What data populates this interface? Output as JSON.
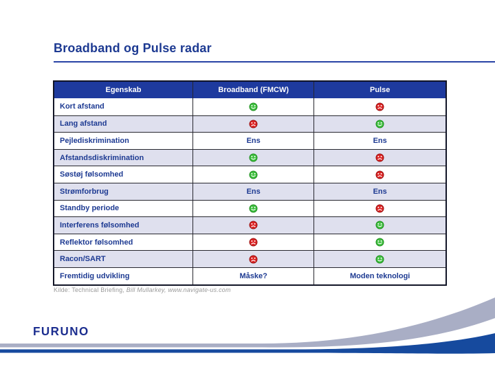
{
  "title": "Broadband og Pulse radar",
  "table": {
    "headers": [
      "Egenskab",
      "Broadband (FMCW)",
      "Pulse"
    ],
    "rows": [
      {
        "label": "Kort afstand",
        "cells": [
          {
            "icon": "happy"
          },
          {
            "icon": "sad"
          }
        ]
      },
      {
        "label": "Lang afstand",
        "cells": [
          {
            "icon": "sad"
          },
          {
            "icon": "happy"
          }
        ]
      },
      {
        "label": "Pejlediskrimination",
        "cells": [
          {
            "text": "Ens"
          },
          {
            "text": "Ens"
          }
        ]
      },
      {
        "label": "Afstandsdiskrimination",
        "cells": [
          {
            "icon": "happy"
          },
          {
            "icon": "sad"
          }
        ]
      },
      {
        "label": "Søstøj følsomhed",
        "cells": [
          {
            "icon": "happy"
          },
          {
            "icon": "sad"
          }
        ]
      },
      {
        "label": "Strømforbrug",
        "cells": [
          {
            "text": "Ens"
          },
          {
            "text": "Ens"
          }
        ]
      },
      {
        "label": "Standby periode",
        "cells": [
          {
            "icon": "happy"
          },
          {
            "icon": "sad"
          }
        ]
      },
      {
        "label": "Interferens følsomhed",
        "cells": [
          {
            "icon": "sad"
          },
          {
            "icon": "happy"
          }
        ]
      },
      {
        "label": "Reflektor følsomhed",
        "cells": [
          {
            "icon": "sad"
          },
          {
            "icon": "happy"
          }
        ]
      },
      {
        "label": "Racon/SART",
        "cells": [
          {
            "icon": "sad"
          },
          {
            "icon": "happy"
          }
        ]
      },
      {
        "label": "Fremtidig udvikling",
        "cells": [
          {
            "text": "Måske?"
          },
          {
            "text": "Moden teknologi"
          }
        ]
      }
    ]
  },
  "source": {
    "prefix": "Kilde: Technical Briefing, ",
    "italic": "Bill Mullarkey, www.navigate-us.com"
  },
  "logo_text": "FURUNO",
  "colors": {
    "title_navy": "#1d3a92",
    "header_bg": "#1e3a9e",
    "row_alt": "#dfe0ee",
    "happy_fill": "#41c141",
    "happy_stroke": "#1f8f1f",
    "sad_fill": "#dd2424",
    "sad_stroke": "#9b1212",
    "swoosh_gray": "#a9aec5",
    "swoosh_blue": "#164a9e",
    "logo_navy": "#1b2d8f"
  }
}
